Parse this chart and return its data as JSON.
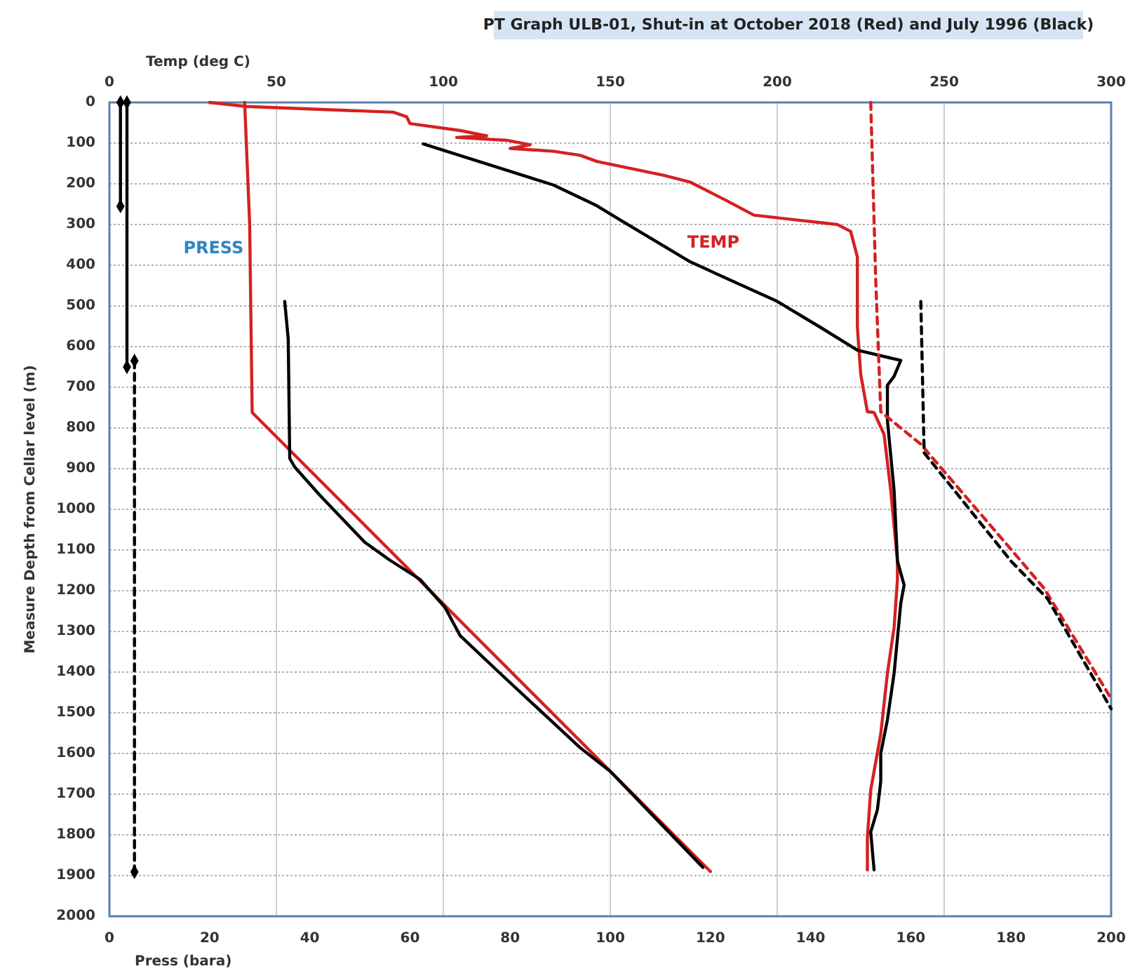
{
  "chart_data": {
    "type": "line",
    "title": "PT Graph ULB-01, Shut-in at October 2018 (Red) and July 1996 (Black)",
    "xlabel": "Press (bara)",
    "x2label": "Temp (deg C)",
    "ylabel": "Measure Depth from Cellar level (m)",
    "ylim": [
      2000,
      0
    ],
    "yticks": [
      0,
      100,
      200,
      300,
      400,
      500,
      600,
      700,
      800,
      900,
      1000,
      1100,
      1200,
      1300,
      1400,
      1500,
      1600,
      1700,
      1800,
      1900,
      2000
    ],
    "xlim": [
      0,
      200
    ],
    "xticks": [
      0,
      20,
      40,
      60,
      80,
      100,
      120,
      140,
      160,
      180,
      200
    ],
    "x2lim": [
      0,
      300
    ],
    "x2ticks": [
      0,
      50,
      100,
      150,
      200,
      250,
      300
    ],
    "grid": true,
    "legend": false,
    "series": [
      {
        "name": "PRESS",
        "color": "#d42121",
        "x": [
          27,
          28,
          28.5,
          120
        ],
        "values": [
          0,
          300,
          762,
          1890
        ]
      },
      {
        "color": "#000000",
        "x": [
          35,
          35.7,
          36,
          37,
          42,
          46,
          51,
          56,
          62,
          67,
          70,
          78,
          87,
          94,
          100,
          118.5
        ],
        "values": [
          489,
          582,
          875,
          896,
          965,
          1017,
          1081,
          1125,
          1172,
          1241,
          1310,
          1403,
          1506,
          1586,
          1644,
          1880
        ]
      },
      {
        "name": "TEMP",
        "color": "#d42121",
        "axis": "x2",
        "x": [
          30,
          41,
          85,
          89,
          90,
          105,
          113,
          104,
          119,
          126,
          120,
          133,
          141,
          146,
          166,
          174,
          185,
          193,
          206,
          218,
          222,
          224,
          224,
          225,
          227,
          229,
          232,
          234,
          236,
          236,
          235,
          233,
          231,
          228,
          227,
          227
        ],
        "values": [
          0,
          10,
          24,
          35,
          52,
          69,
          82,
          86,
          93,
          104,
          113,
          120,
          130,
          145,
          179,
          196,
          242,
          277,
          289,
          300,
          317,
          380,
          552,
          668,
          760,
          762,
          816,
          954,
          1127,
          1173,
          1290,
          1403,
          1552,
          1690,
          1807,
          1886
        ]
      },
      {
        "color": "#000000",
        "axis": "x2",
        "x": [
          94,
          133,
          146,
          153,
          174,
          200,
          213,
          224,
          237,
          235,
          233,
          233,
          235,
          236,
          238,
          237,
          235,
          233,
          231,
          231,
          230,
          228,
          229
        ],
        "values": [
          102,
          203,
          254,
          289,
          392,
          489,
          553,
          609,
          634,
          673,
          695,
          782,
          954,
          1127,
          1186,
          1231,
          1403,
          1517,
          1600,
          1669,
          1738,
          1793,
          1886
        ]
      },
      {
        "color": "#d42121",
        "axis": "x2",
        "line_style": "dashed",
        "x": [
          228,
          229.5,
          231,
          243,
          273,
          280,
          300
        ],
        "values": [
          0,
          437,
          760,
          840,
          1127,
          1195,
          1465
        ]
      },
      {
        "color": "#000000",
        "axis": "x2",
        "line_style": "dashed",
        "x": [
          243,
          244,
          270,
          281,
          300
        ],
        "values": [
          489,
          861,
          1127,
          1220,
          1490
        ]
      },
      {
        "color": "#000000",
        "marker": "diamond",
        "x": [
          2.2,
          2.2
        ],
        "values": [
          0,
          255
        ]
      },
      {
        "color": "#000000",
        "marker": "diamond",
        "x": [
          3.5,
          3.5
        ],
        "values": [
          0,
          650
        ]
      },
      {
        "color": "#000000",
        "marker": "diamond",
        "line_style": "dashed",
        "x": [
          5,
          5
        ],
        "values": [
          635,
          1891
        ]
      }
    ]
  }
}
